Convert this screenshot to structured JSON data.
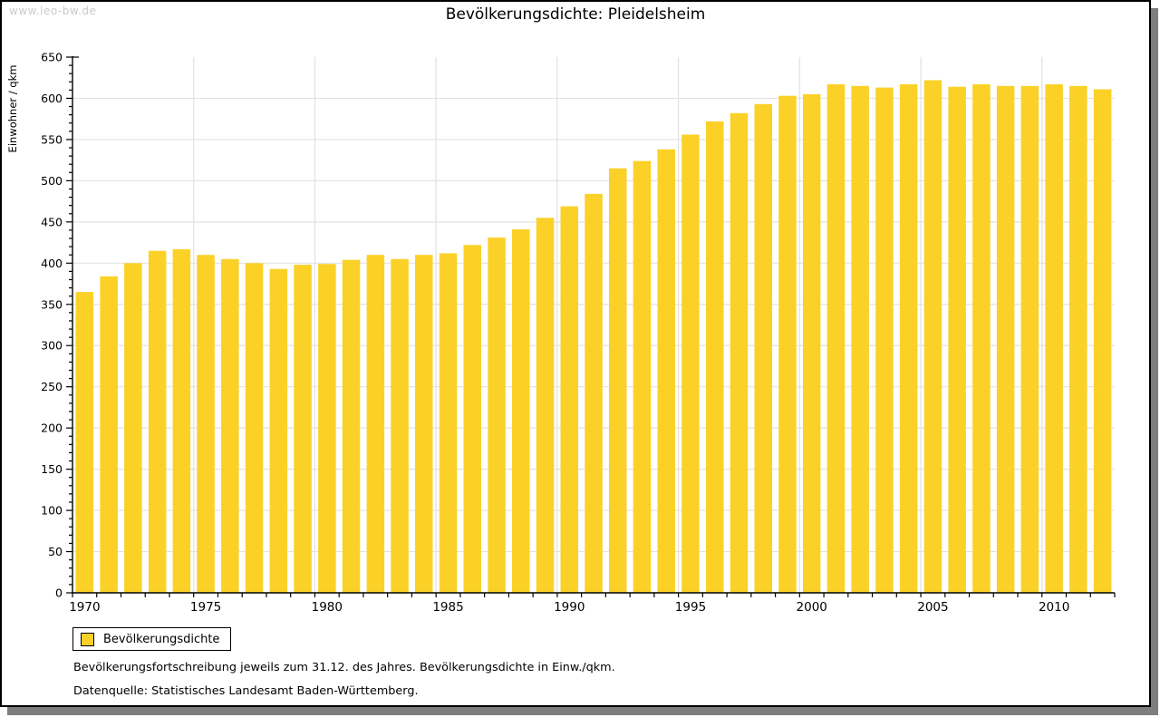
{
  "watermark": "www.leo-bw.de",
  "title": "Bevölkerungsdichte: Pleidelsheim",
  "colors": {
    "bar": "#FBD128",
    "grid": "#E2E2E2",
    "axis": "#000000",
    "watermark": "#CBCBCB",
    "shadow": "#7E7E7E"
  },
  "chart_data": {
    "type": "bar",
    "title": "Bevölkerungsdichte: Pleidelsheim",
    "xlabel": "",
    "ylabel": "Einwohner / qkm",
    "ylim": [
      0,
      650
    ],
    "y_major_step": 50,
    "y_minor_step": 10,
    "grid": true,
    "x_labeled_years": [
      1970,
      1975,
      1980,
      1985,
      1990,
      1995,
      2000,
      2005,
      2010
    ],
    "legend_position": "bottom-left",
    "series_name": "Bevölkerungsdichte",
    "categories": [
      1970,
      1971,
      1972,
      1973,
      1974,
      1975,
      1976,
      1977,
      1978,
      1979,
      1980,
      1981,
      1982,
      1983,
      1984,
      1985,
      1986,
      1987,
      1988,
      1989,
      1990,
      1991,
      1992,
      1993,
      1994,
      1995,
      1996,
      1997,
      1998,
      1999,
      2000,
      2001,
      2002,
      2003,
      2004,
      2005,
      2006,
      2007,
      2008,
      2009,
      2010,
      2011,
      2012
    ],
    "values": [
      365,
      384,
      400,
      415,
      417,
      410,
      405,
      400,
      393,
      398,
      399,
      404,
      410,
      405,
      410,
      412,
      422,
      431,
      441,
      455,
      469,
      484,
      515,
      524,
      538,
      556,
      572,
      582,
      593,
      603,
      605,
      617,
      615,
      613,
      617,
      622,
      614,
      617,
      615,
      615,
      617,
      615,
      611
    ]
  },
  "legend": {
    "label": "Bevölkerungsdichte"
  },
  "footnotes": {
    "line1": "Bevölkerungsfortschreibung jeweils zum 31.12. des Jahres. Bevölkerungsdichte in Einw./qkm.",
    "line2": "Datenquelle: Statistisches Landesamt Baden-Württemberg."
  }
}
